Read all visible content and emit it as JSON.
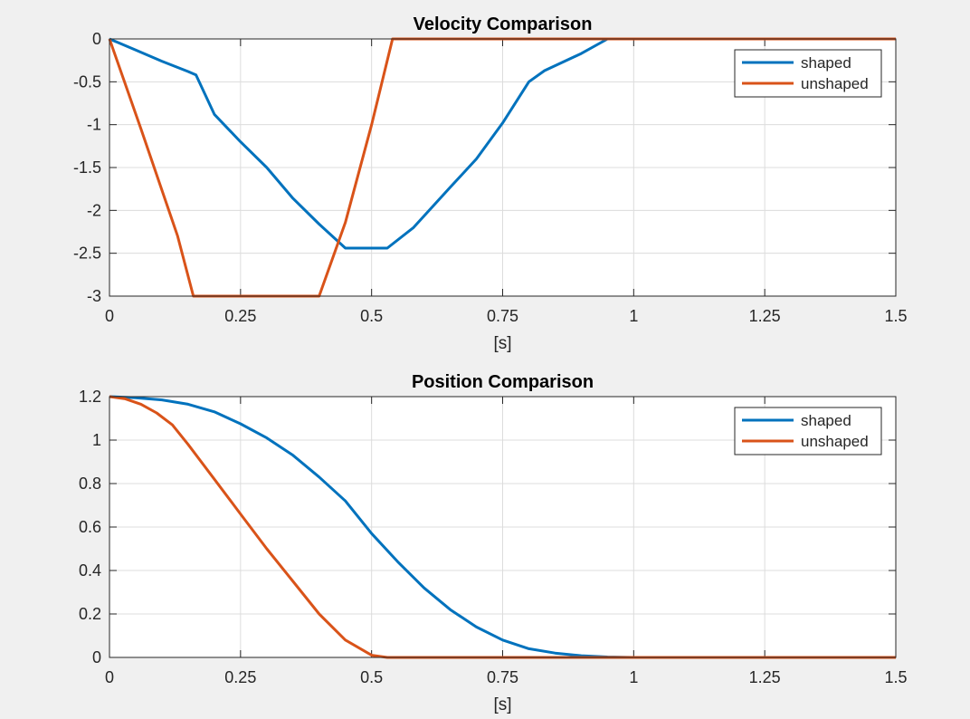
{
  "chart_data": [
    {
      "type": "line",
      "title": "Velocity Comparison",
      "xlabel": "[s]",
      "ylabel": "",
      "xlim": [
        0,
        1.5
      ],
      "ylim": [
        -3,
        0
      ],
      "xticks": [
        "0",
        "0.25",
        "0.5",
        "0.75",
        "1",
        "1.25",
        "1.5"
      ],
      "yticks": [
        "0",
        "-0.5",
        "-1",
        "-1.5",
        "-2",
        "-2.5",
        "-3"
      ],
      "grid": true,
      "legend_position": "top-right",
      "series": [
        {
          "name": "shaped",
          "color": "#0072BD",
          "x": [
            0,
            0.05,
            0.1,
            0.15,
            0.165,
            0.2,
            0.25,
            0.3,
            0.35,
            0.4,
            0.45,
            0.53,
            0.58,
            0.65,
            0.7,
            0.75,
            0.8,
            0.83,
            0.9,
            0.95,
            1.0,
            1.5
          ],
          "y": [
            0,
            -0.13,
            -0.26,
            -0.38,
            -0.42,
            -0.88,
            -1.2,
            -1.5,
            -1.86,
            -2.16,
            -2.44,
            -2.44,
            -2.2,
            -1.73,
            -1.4,
            -0.98,
            -0.5,
            -0.37,
            -0.17,
            0,
            0,
            0
          ]
        },
        {
          "name": "unshaped",
          "color": "#D95319",
          "x": [
            0,
            0.06,
            0.13,
            0.16,
            0.2,
            0.3,
            0.4,
            0.45,
            0.5,
            0.54,
            0.6,
            1.0,
            1.5
          ],
          "y": [
            0,
            -1.05,
            -2.3,
            -3,
            -3,
            -3,
            -3,
            -2.14,
            -1.0,
            0,
            0,
            0,
            0
          ]
        }
      ]
    },
    {
      "type": "line",
      "title": "Position Comparison",
      "xlabel": "[s]",
      "ylabel": "",
      "xlim": [
        0,
        1.5
      ],
      "ylim": [
        0,
        1.2
      ],
      "xticks": [
        "0",
        "0.25",
        "0.5",
        "0.75",
        "1",
        "1.25",
        "1.5"
      ],
      "yticks": [
        "1.2",
        "1",
        "0.8",
        "0.6",
        "0.4",
        "0.2",
        "0"
      ],
      "grid": true,
      "legend_position": "top-right",
      "series": [
        {
          "name": "shaped",
          "color": "#0072BD",
          "x": [
            0,
            0.05,
            0.1,
            0.15,
            0.2,
            0.25,
            0.3,
            0.35,
            0.4,
            0.45,
            0.5,
            0.55,
            0.6,
            0.65,
            0.7,
            0.75,
            0.8,
            0.85,
            0.9,
            0.95,
            1.0,
            1.5
          ],
          "y": [
            1.2,
            1.195,
            1.185,
            1.165,
            1.13,
            1.075,
            1.01,
            0.93,
            0.83,
            0.72,
            0.57,
            0.44,
            0.32,
            0.22,
            0.14,
            0.08,
            0.04,
            0.02,
            0.008,
            0.002,
            0,
            0
          ]
        },
        {
          "name": "unshaped",
          "color": "#D95319",
          "x": [
            0,
            0.03,
            0.06,
            0.09,
            0.12,
            0.15,
            0.2,
            0.25,
            0.3,
            0.35,
            0.4,
            0.45,
            0.5,
            0.53,
            0.6,
            1.0,
            1.5
          ],
          "y": [
            1.2,
            1.19,
            1.165,
            1.125,
            1.07,
            0.98,
            0.82,
            0.66,
            0.5,
            0.35,
            0.2,
            0.08,
            0.01,
            0,
            0,
            0,
            0
          ]
        }
      ]
    }
  ]
}
